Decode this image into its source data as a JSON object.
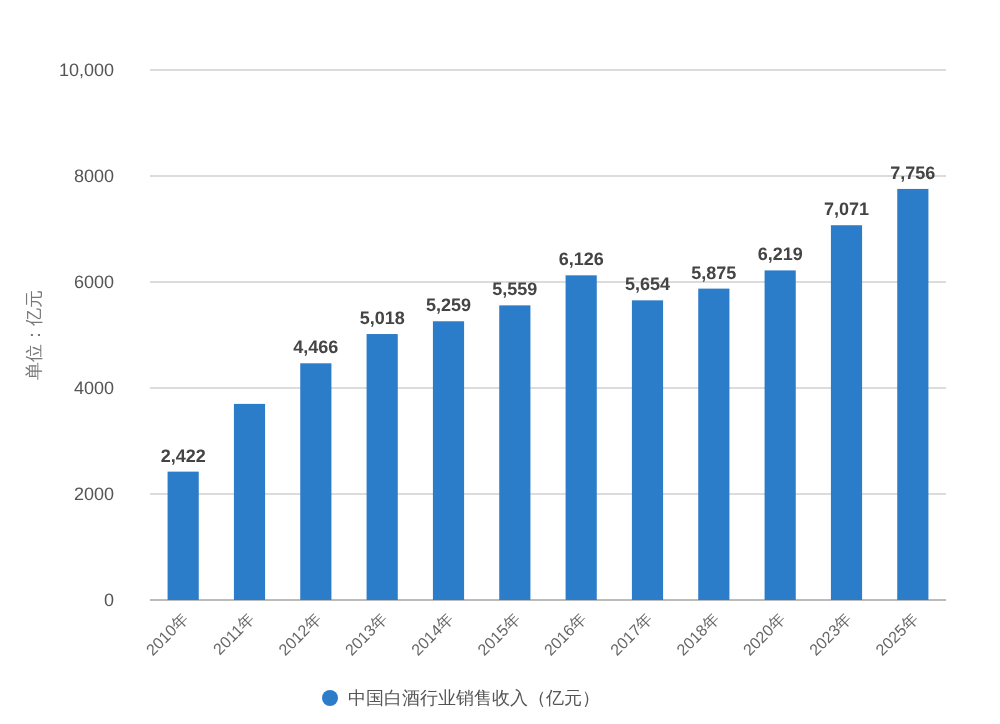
{
  "chart_data": {
    "type": "bar",
    "ylabel": "单位：亿元",
    "categories": [
      "2010年",
      "2011年",
      "2012年",
      "2013年",
      "2014年",
      "2015年",
      "2016年",
      "2017年",
      "2018年",
      "2020年",
      "2023年",
      "2025年"
    ],
    "series": [
      {
        "name": "中国白酒行业销售收入（亿元）",
        "color": "#2b7cc9",
        "values": [
          2422,
          3700,
          4466,
          5018,
          5259,
          5559,
          6126,
          5654,
          5875,
          6219,
          7071,
          7756
        ],
        "value_labels": [
          "2,422",
          null,
          "4,466",
          "5,018",
          "5,259",
          "5,559",
          "6,126",
          "5,654",
          "5,875",
          "6,219",
          "7,071",
          "7,756"
        ]
      }
    ],
    "ylim": [
      0,
      10000
    ],
    "yticks": [
      0,
      2000,
      4000,
      6000,
      8000,
      {
        "value": 10000,
        "label": "10,000"
      }
    ],
    "grid": "y",
    "legend": "bottom"
  }
}
